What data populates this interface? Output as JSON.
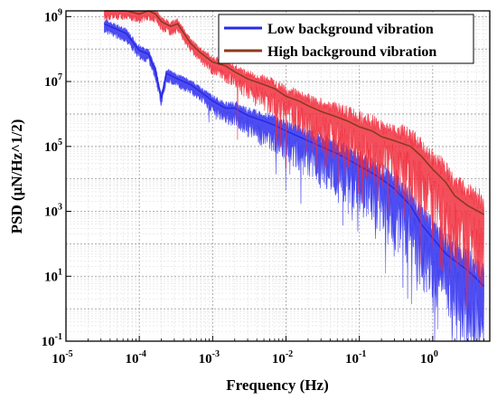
{
  "chart_data": {
    "type": "line",
    "xlabel": "Frequency (Hz)",
    "ylabel": "PSD (μN/Hz^1/2)",
    "xscale": "log",
    "yscale": "log",
    "xlim": [
      1e-05,
      6
    ],
    "ylim": [
      0.1,
      1500000000
    ],
    "x_ticks": [
      {
        "value": 1e-05,
        "base": "10",
        "exp": "-5"
      },
      {
        "value": 0.0001,
        "base": "10",
        "exp": "-4"
      },
      {
        "value": 0.001,
        "base": "10",
        "exp": "-3"
      },
      {
        "value": 0.01,
        "base": "10",
        "exp": "-2"
      },
      {
        "value": 0.1,
        "base": "10",
        "exp": "-1"
      },
      {
        "value": 1,
        "base": "10",
        "exp": "0"
      }
    ],
    "y_ticks": [
      {
        "value": 0.1,
        "base": "10",
        "exp": "-1"
      },
      {
        "value": 10,
        "base": "10",
        "exp": "1"
      },
      {
        "value": 1000,
        "base": "10",
        "exp": "3"
      },
      {
        "value": 100000,
        "base": "10",
        "exp": "5"
      },
      {
        "value": 10000000,
        "base": "10",
        "exp": "7"
      },
      {
        "value": 1000000000,
        "base": "10",
        "exp": "9"
      }
    ],
    "grid": true,
    "legend_position": "top-right",
    "series": [
      {
        "name": "Low background vibration",
        "color": "#2a2ae6",
        "fill_color": "#3a3af0",
        "points": [
          [
            3.33e-05,
            600000000
          ],
          [
            6.67e-05,
            300000000
          ],
          [
            0.0001,
            90000000
          ],
          [
            0.000133,
            70000000
          ],
          [
            0.000167,
            20000000
          ],
          [
            0.0002,
            3000000
          ],
          [
            0.000233,
            18000000
          ],
          [
            0.000333,
            12000000
          ],
          [
            0.0005,
            8000000
          ],
          [
            0.000667,
            5000000
          ],
          [
            0.001,
            2500000
          ],
          [
            0.0015,
            1500000
          ],
          [
            0.002,
            1500000
          ],
          [
            0.003,
            900000
          ],
          [
            0.005,
            600000
          ],
          [
            0.007,
            450000
          ],
          [
            0.01,
            300000
          ],
          [
            0.015,
            200000
          ],
          [
            0.02,
            150000
          ],
          [
            0.03,
            100000
          ],
          [
            0.05,
            60000
          ],
          [
            0.07,
            40000
          ],
          [
            0.1,
            25000
          ],
          [
            0.15,
            15000
          ],
          [
            0.2,
            10000
          ],
          [
            0.3,
            5000
          ],
          [
            0.5,
            1500
          ],
          [
            0.7,
            400
          ],
          [
            1,
            150
          ],
          [
            1.5,
            50
          ],
          [
            2,
            30
          ],
          [
            3,
            15
          ],
          [
            5,
            5
          ]
        ]
      },
      {
        "name": "High background vibration",
        "color": "#8b3a1e",
        "fill_color": "#f02838",
        "points": [
          [
            3.33e-05,
            1500000000
          ],
          [
            6.67e-05,
            1600000000
          ],
          [
            0.0001,
            1200000000
          ],
          [
            0.000133,
            1500000000
          ],
          [
            0.000167,
            1200000000
          ],
          [
            0.0002,
            700000000
          ],
          [
            0.000267,
            500000000
          ],
          [
            0.000333,
            600000000
          ],
          [
            0.0005,
            150000000
          ],
          [
            0.000667,
            80000000
          ],
          [
            0.001,
            40000000
          ],
          [
            0.0015,
            30000000
          ],
          [
            0.002,
            20000000
          ],
          [
            0.003,
            12000000
          ],
          [
            0.005,
            8000000
          ],
          [
            0.007,
            6000000
          ],
          [
            0.01,
            3500000
          ],
          [
            0.015,
            2500000
          ],
          [
            0.02,
            1800000
          ],
          [
            0.03,
            1200000
          ],
          [
            0.05,
            800000
          ],
          [
            0.07,
            600000
          ],
          [
            0.1,
            400000
          ],
          [
            0.15,
            300000
          ],
          [
            0.2,
            200000
          ],
          [
            0.3,
            150000
          ],
          [
            0.5,
            100000
          ],
          [
            0.7,
            50000
          ],
          [
            1,
            20000
          ],
          [
            1.5,
            8000
          ],
          [
            2,
            3000
          ],
          [
            3,
            1500
          ],
          [
            5,
            800
          ]
        ]
      }
    ]
  }
}
